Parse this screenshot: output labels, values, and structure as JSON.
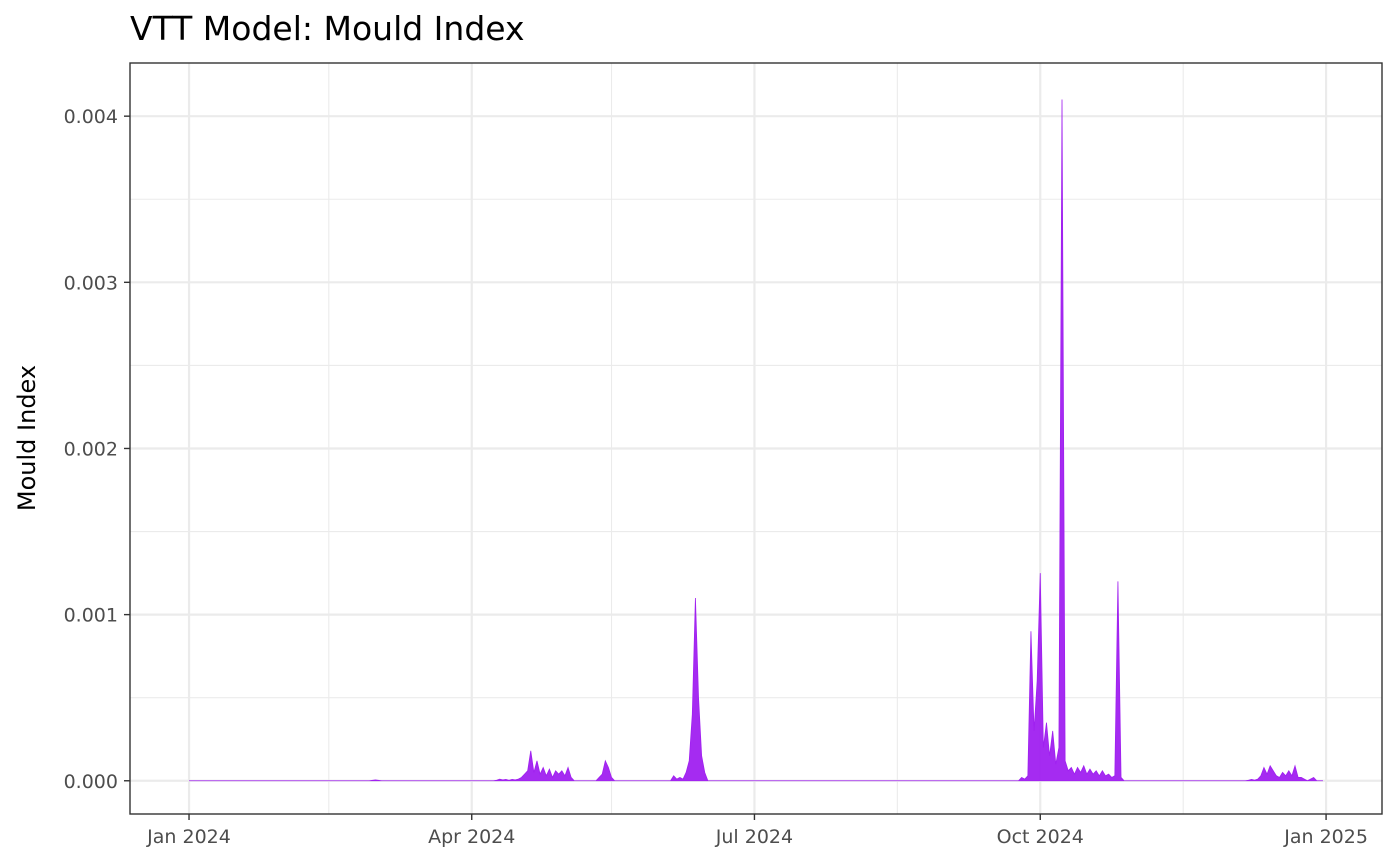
{
  "chart_data": {
    "type": "area",
    "title": "VTT Model: Mould Index",
    "xlabel": "",
    "ylabel": "Mould Index",
    "x_tick_labels": [
      {
        "date": "2024-01-01",
        "label": "Jan 2024"
      },
      {
        "date": "2024-04-01",
        "label": "Apr 2024"
      },
      {
        "date": "2024-07-01",
        "label": "Jul 2024"
      },
      {
        "date": "2024-10-01",
        "label": "Oct 2024"
      },
      {
        "date": "2025-01-01",
        "label": "Jan 2025"
      }
    ],
    "x_minor_gridlines": [
      "2024-02-15",
      "2024-05-16",
      "2024-08-16",
      "2024-11-16"
    ],
    "y_tick_labels": [
      "0.000",
      "0.001",
      "0.002",
      "0.003",
      "0.004"
    ],
    "y_ticks": [
      0,
      0.001,
      0.002,
      0.003,
      0.004
    ],
    "y_minor_gridlines": [
      0.0005,
      0.0015,
      0.0025,
      0.0035
    ],
    "xlim": [
      "2023-12-13",
      "2025-01-19"
    ],
    "ylim": [
      -0.0002,
      0.00432
    ],
    "grid": true,
    "legend": "none",
    "series": [
      {
        "color": "#a020f0",
        "points": [
          [
            "2024-01-01",
            0
          ],
          [
            "2024-02-28",
            0
          ],
          [
            "2024-03-01",
            5e-06
          ],
          [
            "2024-03-03",
            0
          ],
          [
            "2024-04-08",
            0
          ],
          [
            "2024-04-09",
            3e-06
          ],
          [
            "2024-04-10",
            1e-05
          ],
          [
            "2024-04-11",
            5e-06
          ],
          [
            "2024-04-12",
            8e-06
          ],
          [
            "2024-04-13",
            3e-06
          ],
          [
            "2024-04-14",
            8e-06
          ],
          [
            "2024-04-15",
            5e-06
          ],
          [
            "2024-04-16",
            1e-05
          ],
          [
            "2024-04-17",
            2e-05
          ],
          [
            "2024-04-18",
            4e-05
          ],
          [
            "2024-04-19",
            6e-05
          ],
          [
            "2024-04-20",
            0.00018
          ],
          [
            "2024-04-21",
            5e-05
          ],
          [
            "2024-04-22",
            0.00012
          ],
          [
            "2024-04-23",
            4e-05
          ],
          [
            "2024-04-24",
            8e-05
          ],
          [
            "2024-04-25",
            3e-05
          ],
          [
            "2024-04-26",
            7e-05
          ],
          [
            "2024-04-27",
            2e-05
          ],
          [
            "2024-04-28",
            6e-05
          ],
          [
            "2024-04-29",
            4e-05
          ],
          [
            "2024-04-30",
            6e-05
          ],
          [
            "2024-05-01",
            3e-05
          ],
          [
            "2024-05-02",
            8e-05
          ],
          [
            "2024-05-03",
            2e-05
          ],
          [
            "2024-05-04",
            0
          ],
          [
            "2024-05-11",
            0
          ],
          [
            "2024-05-12",
            2e-05
          ],
          [
            "2024-05-13",
            4e-05
          ],
          [
            "2024-05-14",
            0.00012
          ],
          [
            "2024-05-15",
            8e-05
          ],
          [
            "2024-05-16",
            2e-05
          ],
          [
            "2024-05-17",
            0
          ],
          [
            "2024-06-04",
            0
          ],
          [
            "2024-06-05",
            3e-05
          ],
          [
            "2024-06-06",
            1e-05
          ],
          [
            "2024-06-07",
            2e-05
          ],
          [
            "2024-06-08",
            1e-05
          ],
          [
            "2024-06-09",
            5e-05
          ],
          [
            "2024-06-10",
            0.00012
          ],
          [
            "2024-06-11",
            0.0004
          ],
          [
            "2024-06-12",
            0.0011
          ],
          [
            "2024-06-13",
            0.0005
          ],
          [
            "2024-06-14",
            0.00015
          ],
          [
            "2024-06-15",
            5e-05
          ],
          [
            "2024-06-16",
            0
          ],
          [
            "2024-09-24",
            0
          ],
          [
            "2024-09-25",
            2e-05
          ],
          [
            "2024-09-26",
            1e-05
          ],
          [
            "2024-09-27",
            3e-05
          ],
          [
            "2024-09-28",
            0.0009
          ],
          [
            "2024-09-29",
            0.0003
          ],
          [
            "2024-09-30",
            0.0006
          ],
          [
            "2024-10-01",
            0.00125
          ],
          [
            "2024-10-02",
            0.0002
          ],
          [
            "2024-10-03",
            0.00035
          ],
          [
            "2024-10-04",
            0.00015
          ],
          [
            "2024-10-05",
            0.0003
          ],
          [
            "2024-10-06",
            0.0001
          ],
          [
            "2024-10-07",
            0.0002
          ],
          [
            "2024-10-08",
            0.0041
          ],
          [
            "2024-10-09",
            0.00012
          ],
          [
            "2024-10-10",
            6e-05
          ],
          [
            "2024-10-11",
            8e-05
          ],
          [
            "2024-10-12",
            4e-05
          ],
          [
            "2024-10-13",
            8e-05
          ],
          [
            "2024-10-14",
            5e-05
          ],
          [
            "2024-10-15",
            9e-05
          ],
          [
            "2024-10-16",
            4e-05
          ],
          [
            "2024-10-17",
            7e-05
          ],
          [
            "2024-10-18",
            4e-05
          ],
          [
            "2024-10-19",
            6e-05
          ],
          [
            "2024-10-20",
            3e-05
          ],
          [
            "2024-10-21",
            6e-05
          ],
          [
            "2024-10-22",
            3e-05
          ],
          [
            "2024-10-23",
            4e-05
          ],
          [
            "2024-10-24",
            2e-05
          ],
          [
            "2024-10-25",
            3e-05
          ],
          [
            "2024-10-26",
            0.0012
          ],
          [
            "2024-10-27",
            2e-05
          ],
          [
            "2024-10-28",
            0
          ],
          [
            "2024-12-06",
            0
          ],
          [
            "2024-12-07",
            3e-06
          ],
          [
            "2024-12-08",
            8e-06
          ],
          [
            "2024-12-09",
            4e-06
          ],
          [
            "2024-12-10",
            1e-05
          ],
          [
            "2024-12-11",
            3e-05
          ],
          [
            "2024-12-12",
            8e-05
          ],
          [
            "2024-12-13",
            4e-05
          ],
          [
            "2024-12-14",
            9e-05
          ],
          [
            "2024-12-15",
            6e-05
          ],
          [
            "2024-12-16",
            3e-05
          ],
          [
            "2024-12-17",
            2e-05
          ],
          [
            "2024-12-18",
            5e-05
          ],
          [
            "2024-12-19",
            3e-05
          ],
          [
            "2024-12-20",
            6e-05
          ],
          [
            "2024-12-21",
            3e-05
          ],
          [
            "2024-12-22",
            9e-05
          ],
          [
            "2024-12-23",
            2e-05
          ],
          [
            "2024-12-24",
            2e-05
          ],
          [
            "2024-12-25",
            1e-05
          ],
          [
            "2024-12-26",
            0
          ],
          [
            "2024-12-27",
            1e-05
          ],
          [
            "2024-12-28",
            2e-05
          ],
          [
            "2024-12-29",
            0
          ],
          [
            "2024-12-31",
            0
          ]
        ]
      }
    ]
  }
}
